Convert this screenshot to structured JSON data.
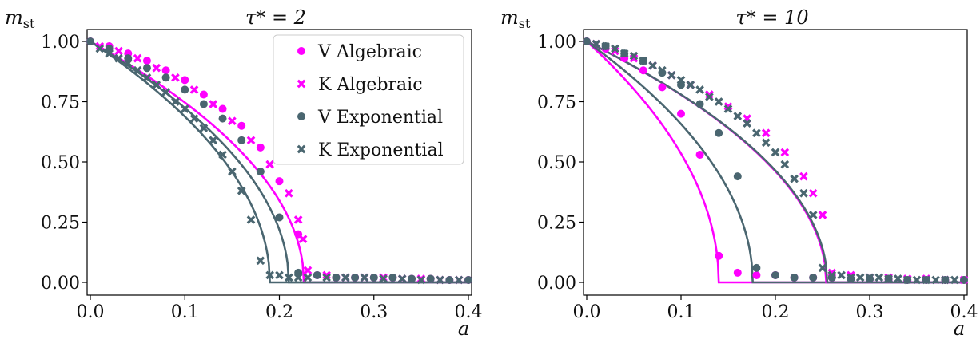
{
  "colors": {
    "algebraic": "#ff00ff",
    "exponential": "#4a6670"
  },
  "chart_data": [
    {
      "type": "line",
      "title": "τ* = 2",
      "xlabel": "a",
      "ylabel": "m_st",
      "xlim": [
        0.0,
        0.4
      ],
      "ylim": [
        0.0,
        1.0
      ],
      "xticks": [
        "0.0",
        "0.1",
        "0.2",
        "0.3",
        "0.4"
      ],
      "yticks": [
        "0.00",
        "0.25",
        "0.50",
        "0.75",
        "1.00"
      ],
      "legend_location": "top-right",
      "legend": [
        "V Algebraic",
        "K Algebraic",
        "V Exponential",
        "K Exponential"
      ],
      "curves": [
        {
          "series": "Algebraic",
          "a_c": 0.226
        },
        {
          "series": "Exponential",
          "a_c": 0.21
        },
        {
          "series": "Exponential",
          "a_c": 0.19
        }
      ],
      "series": [
        {
          "name": "V Algebraic",
          "marker": "circle",
          "color": "algebraic",
          "x": [
            0.0,
            0.02,
            0.04,
            0.06,
            0.08,
            0.1,
            0.12,
            0.14,
            0.16,
            0.18,
            0.2,
            0.22,
            0.24,
            0.26,
            0.28,
            0.3,
            0.32,
            0.34,
            0.36,
            0.38,
            0.4
          ],
          "y": [
            1.0,
            0.98,
            0.95,
            0.92,
            0.88,
            0.84,
            0.78,
            0.72,
            0.65,
            0.56,
            0.42,
            0.2,
            0.03,
            0.02,
            0.02,
            0.02,
            0.02,
            0.015,
            0.015,
            0.01,
            0.01
          ]
        },
        {
          "name": "K Algebraic",
          "marker": "x",
          "color": "algebraic",
          "x": [
            0.01,
            0.03,
            0.05,
            0.07,
            0.09,
            0.11,
            0.13,
            0.15,
            0.17,
            0.19,
            0.21,
            0.22,
            0.225,
            0.23,
            0.25,
            0.27,
            0.29,
            0.31,
            0.33,
            0.35,
            0.37,
            0.39
          ],
          "y": [
            0.98,
            0.96,
            0.93,
            0.89,
            0.85,
            0.8,
            0.74,
            0.67,
            0.59,
            0.49,
            0.37,
            0.26,
            0.18,
            0.05,
            0.03,
            0.02,
            0.02,
            0.02,
            0.015,
            0.015,
            0.01,
            0.01
          ]
        },
        {
          "name": "V Exponential",
          "marker": "circle",
          "color": "exponential",
          "x": [
            0.0,
            0.02,
            0.04,
            0.06,
            0.08,
            0.1,
            0.12,
            0.14,
            0.16,
            0.18,
            0.2,
            0.22,
            0.24,
            0.26,
            0.28,
            0.3,
            0.32,
            0.34,
            0.36,
            0.38,
            0.4
          ],
          "y": [
            1.0,
            0.97,
            0.93,
            0.89,
            0.85,
            0.8,
            0.74,
            0.68,
            0.59,
            0.46,
            0.27,
            0.04,
            0.03,
            0.02,
            0.02,
            0.02,
            0.02,
            0.015,
            0.015,
            0.01,
            0.01
          ]
        },
        {
          "name": "K Exponential",
          "marker": "x",
          "color": "exponential",
          "x": [
            0.01,
            0.02,
            0.03,
            0.04,
            0.05,
            0.06,
            0.07,
            0.08,
            0.09,
            0.1,
            0.11,
            0.12,
            0.13,
            0.14,
            0.15,
            0.16,
            0.17,
            0.18,
            0.19,
            0.2,
            0.21,
            0.22,
            0.23,
            0.25,
            0.27,
            0.29,
            0.31,
            0.33,
            0.35,
            0.37,
            0.39
          ],
          "y": [
            0.97,
            0.95,
            0.93,
            0.91,
            0.88,
            0.85,
            0.82,
            0.79,
            0.75,
            0.72,
            0.68,
            0.64,
            0.59,
            0.53,
            0.46,
            0.38,
            0.26,
            0.09,
            0.03,
            0.03,
            0.02,
            0.02,
            0.02,
            0.02,
            0.02,
            0.02,
            0.015,
            0.015,
            0.01,
            0.01,
            0.01
          ]
        }
      ]
    },
    {
      "type": "line",
      "title": "τ* = 10",
      "xlabel": "a",
      "ylabel": "m_st",
      "xlim": [
        0.0,
        0.4
      ],
      "ylim": [
        0.0,
        1.0
      ],
      "xticks": [
        "0.0",
        "0.1",
        "0.2",
        "0.3",
        "0.4"
      ],
      "yticks": [
        "0.00",
        "0.25",
        "0.50",
        "0.75",
        "1.00"
      ],
      "curves": [
        {
          "series": "Algebraic",
          "a_c": 0.14
        },
        {
          "series": "Exponential",
          "a_c": 0.176
        },
        {
          "series": "Algebraic",
          "a_c": 0.254
        },
        {
          "series": "Exponential",
          "a_c": 0.255
        }
      ],
      "series": [
        {
          "name": "V Algebraic",
          "marker": "circle",
          "color": "algebraic",
          "x": [
            0.0,
            0.02,
            0.04,
            0.06,
            0.08,
            0.1,
            0.12,
            0.14,
            0.16,
            0.18,
            0.2,
            0.22,
            0.24,
            0.26,
            0.28,
            0.3,
            0.32,
            0.34,
            0.36,
            0.38,
            0.4
          ],
          "y": [
            1.0,
            0.97,
            0.93,
            0.88,
            0.81,
            0.7,
            0.53,
            0.11,
            0.04,
            0.03,
            0.03,
            0.02,
            0.02,
            0.02,
            0.015,
            0.015,
            0.015,
            0.01,
            0.01,
            0.01,
            0.01
          ]
        },
        {
          "name": "K Algebraic",
          "marker": "x",
          "color": "algebraic",
          "x": [
            0.01,
            0.03,
            0.05,
            0.07,
            0.09,
            0.11,
            0.13,
            0.15,
            0.17,
            0.19,
            0.21,
            0.23,
            0.24,
            0.25,
            0.26,
            0.28,
            0.3,
            0.32,
            0.34,
            0.36,
            0.38,
            0.4
          ],
          "y": [
            0.99,
            0.96,
            0.93,
            0.9,
            0.86,
            0.82,
            0.78,
            0.73,
            0.68,
            0.62,
            0.54,
            0.44,
            0.37,
            0.28,
            0.04,
            0.03,
            0.02,
            0.02,
            0.015,
            0.015,
            0.01,
            0.01
          ]
        },
        {
          "name": "V Exponential",
          "marker": "circle",
          "color": "exponential",
          "x": [
            0.0,
            0.02,
            0.04,
            0.06,
            0.08,
            0.1,
            0.12,
            0.14,
            0.16,
            0.18,
            0.2,
            0.22,
            0.24,
            0.26,
            0.28,
            0.3,
            0.32,
            0.34,
            0.36,
            0.38,
            0.4
          ],
          "y": [
            1.0,
            0.98,
            0.95,
            0.92,
            0.87,
            0.82,
            0.74,
            0.62,
            0.44,
            0.06,
            0.03,
            0.02,
            0.02,
            0.02,
            0.015,
            0.015,
            0.015,
            0.01,
            0.01,
            0.01,
            0.01
          ]
        },
        {
          "name": "K Exponential",
          "marker": "x",
          "color": "exponential",
          "x": [
            0.01,
            0.02,
            0.03,
            0.04,
            0.05,
            0.06,
            0.07,
            0.08,
            0.09,
            0.1,
            0.11,
            0.12,
            0.13,
            0.14,
            0.15,
            0.16,
            0.17,
            0.18,
            0.19,
            0.2,
            0.21,
            0.22,
            0.23,
            0.24,
            0.25,
            0.26,
            0.27,
            0.28,
            0.29,
            0.3,
            0.31,
            0.32,
            0.33,
            0.34,
            0.35,
            0.36,
            0.37,
            0.38,
            0.39
          ],
          "y": [
            0.99,
            0.98,
            0.97,
            0.95,
            0.94,
            0.92,
            0.9,
            0.88,
            0.86,
            0.84,
            0.82,
            0.8,
            0.77,
            0.75,
            0.72,
            0.69,
            0.66,
            0.62,
            0.58,
            0.54,
            0.49,
            0.43,
            0.37,
            0.28,
            0.06,
            0.03,
            0.03,
            0.02,
            0.02,
            0.02,
            0.02,
            0.015,
            0.015,
            0.01,
            0.01,
            0.01,
            0.01,
            0.01,
            0.01
          ]
        }
      ]
    }
  ]
}
